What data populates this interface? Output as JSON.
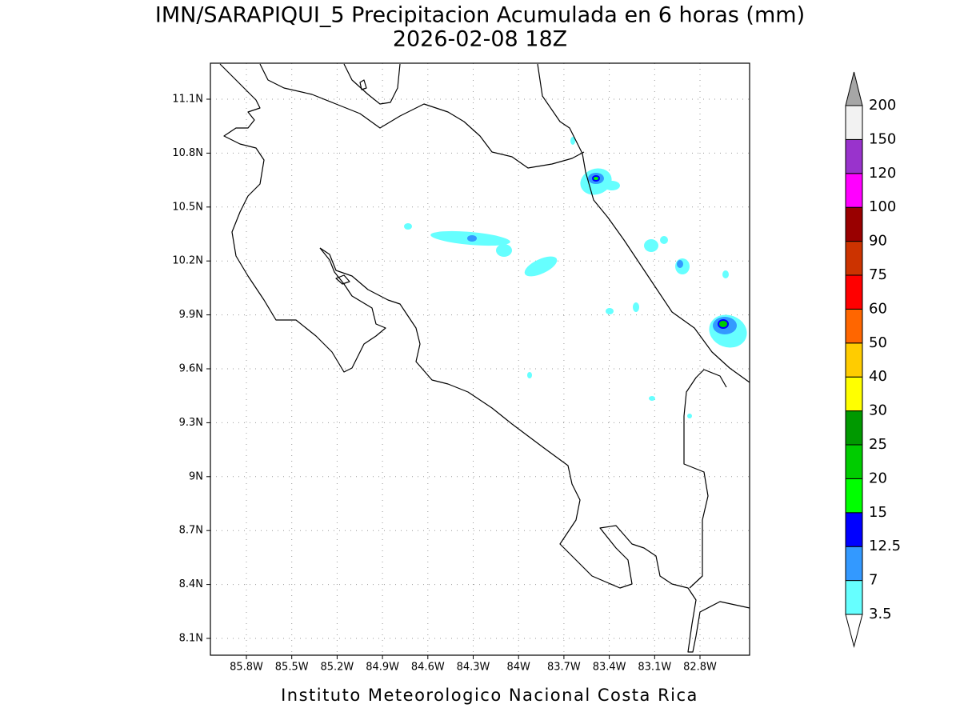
{
  "header": {
    "title": "IMN/SARAPIQUI_5 Precipitacion Acumulada en 6 horas (mm)",
    "subtitle": "2026-02-08 18Z"
  },
  "map": {
    "lat_labels": [
      "11.1N",
      "10.8N",
      "10.5N",
      "10.2N",
      "9.9N",
      "9.6N",
      "9.3N",
      "9N",
      "8.7N",
      "8.4N",
      "8.1N"
    ],
    "lon_labels": [
      "85.8W",
      "85.5W",
      "85.2W",
      "84.9W",
      "84.6W",
      "84.3W",
      "84W",
      "83.7W",
      "83.4W",
      "83.1W",
      "82.8W"
    ]
  },
  "colorbar": {
    "levels": [
      3.5,
      7,
      12.5,
      15,
      20,
      25,
      30,
      40,
      50,
      60,
      75,
      90,
      100,
      120,
      150,
      200
    ],
    "colors": [
      "#66ffff",
      "#3399ff",
      "#0000ff",
      "#00ff00",
      "#00cc00",
      "#009900",
      "#ffff00",
      "#ffcc00",
      "#ff6600",
      "#ff0000",
      "#cc3300",
      "#990000",
      "#ff00ff",
      "#9933cc",
      "#f2f2f2"
    ],
    "under_color": "#ffffff",
    "over_color": "#a6a6a6"
  },
  "footer": "Instituto Meteorologico Nacional Costa Rica"
}
